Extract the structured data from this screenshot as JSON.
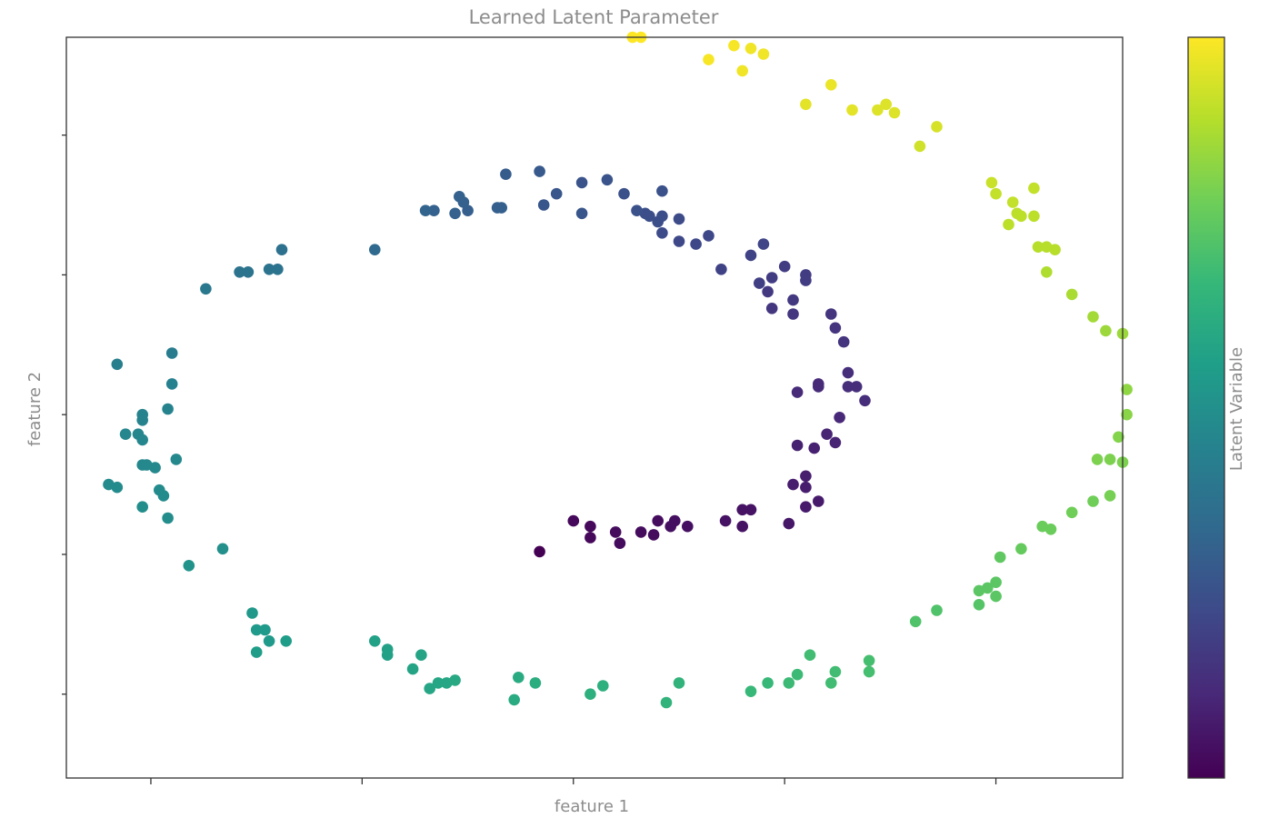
{
  "chart_data": {
    "type": "scatter",
    "title": "Learned Latent Parameter",
    "xlabel": "feature 1",
    "ylabel": "feature 2",
    "xlim": [
      -1.2,
      1.3
    ],
    "ylim": [
      -1.3,
      1.35
    ],
    "x_ticks": [
      -1.0,
      -0.5,
      0.0,
      0.5,
      1.0
    ],
    "y_ticks": [
      -1.0,
      -0.5,
      0.0,
      0.5,
      1.0,
      1.5
    ],
    "tick_labels_shown": false,
    "grid": false,
    "colorbar": {
      "label": "Latent Variable",
      "colormap": "viridis",
      "range": [
        0,
        1
      ],
      "tick_labels_shown": false
    },
    "colormap_stops": [
      "#440154",
      "#482878",
      "#3e4989",
      "#31688e",
      "#26828e",
      "#1f9e89",
      "#35b779",
      "#6ece58",
      "#b5de2b",
      "#fde725"
    ],
    "points": [
      {
        "x": -0.08,
        "y": -0.49,
        "t": 0.0
      },
      {
        "x": 0.0,
        "y": -0.38,
        "t": 0.02
      },
      {
        "x": 0.04,
        "y": -0.4,
        "t": 0.02
      },
      {
        "x": 0.04,
        "y": -0.44,
        "t": 0.02
      },
      {
        "x": 0.1,
        "y": -0.42,
        "t": 0.03
      },
      {
        "x": 0.11,
        "y": -0.46,
        "t": 0.03
      },
      {
        "x": 0.16,
        "y": -0.42,
        "t": 0.03
      },
      {
        "x": 0.19,
        "y": -0.43,
        "t": 0.03
      },
      {
        "x": 0.2,
        "y": -0.38,
        "t": 0.03
      },
      {
        "x": 0.23,
        "y": -0.4,
        "t": 0.04
      },
      {
        "x": 0.24,
        "y": -0.38,
        "t": 0.04
      },
      {
        "x": 0.27,
        "y": -0.4,
        "t": 0.04
      },
      {
        "x": 0.36,
        "y": -0.38,
        "t": 0.05
      },
      {
        "x": 0.4,
        "y": -0.4,
        "t": 0.05
      },
      {
        "x": 0.4,
        "y": -0.34,
        "t": 0.05
      },
      {
        "x": 0.42,
        "y": -0.34,
        "t": 0.05
      },
      {
        "x": 0.51,
        "y": -0.39,
        "t": 0.06
      },
      {
        "x": 0.55,
        "y": -0.33,
        "t": 0.07
      },
      {
        "x": 0.58,
        "y": -0.31,
        "t": 0.07
      },
      {
        "x": 0.52,
        "y": -0.25,
        "t": 0.08
      },
      {
        "x": 0.55,
        "y": -0.26,
        "t": 0.08
      },
      {
        "x": 0.55,
        "y": -0.22,
        "t": 0.08
      },
      {
        "x": 0.53,
        "y": -0.11,
        "t": 0.09
      },
      {
        "x": 0.57,
        "y": -0.12,
        "t": 0.09
      },
      {
        "x": 0.6,
        "y": -0.07,
        "t": 0.1
      },
      {
        "x": 0.62,
        "y": -0.1,
        "t": 0.1
      },
      {
        "x": 0.63,
        "y": -0.01,
        "t": 0.11
      },
      {
        "x": 0.53,
        "y": 0.08,
        "t": 0.12
      },
      {
        "x": 0.58,
        "y": 0.1,
        "t": 0.12
      },
      {
        "x": 0.58,
        "y": 0.11,
        "t": 0.12
      },
      {
        "x": 0.65,
        "y": 0.1,
        "t": 0.13
      },
      {
        "x": 0.67,
        "y": 0.1,
        "t": 0.13
      },
      {
        "x": 0.69,
        "y": 0.05,
        "t": 0.13
      },
      {
        "x": 0.65,
        "y": 0.15,
        "t": 0.13
      },
      {
        "x": 0.64,
        "y": 0.26,
        "t": 0.15
      },
      {
        "x": 0.62,
        "y": 0.31,
        "t": 0.15
      },
      {
        "x": 0.61,
        "y": 0.36,
        "t": 0.15
      },
      {
        "x": 0.52,
        "y": 0.36,
        "t": 0.16
      },
      {
        "x": 0.47,
        "y": 0.38,
        "t": 0.16
      },
      {
        "x": 0.46,
        "y": 0.44,
        "t": 0.17
      },
      {
        "x": 0.52,
        "y": 0.41,
        "t": 0.17
      },
      {
        "x": 0.55,
        "y": 0.5,
        "t": 0.18
      },
      {
        "x": 0.55,
        "y": 0.48,
        "t": 0.18
      },
      {
        "x": 0.5,
        "y": 0.53,
        "t": 0.18
      },
      {
        "x": 0.47,
        "y": 0.49,
        "t": 0.18
      },
      {
        "x": 0.44,
        "y": 0.47,
        "t": 0.19
      },
      {
        "x": 0.35,
        "y": 0.52,
        "t": 0.2
      },
      {
        "x": 0.42,
        "y": 0.57,
        "t": 0.2
      },
      {
        "x": 0.45,
        "y": 0.61,
        "t": 0.21
      },
      {
        "x": 0.32,
        "y": 0.64,
        "t": 0.22
      },
      {
        "x": 0.29,
        "y": 0.61,
        "t": 0.22
      },
      {
        "x": 0.25,
        "y": 0.62,
        "t": 0.22
      },
      {
        "x": 0.25,
        "y": 0.7,
        "t": 0.23
      },
      {
        "x": 0.21,
        "y": 0.65,
        "t": 0.23
      },
      {
        "x": 0.2,
        "y": 0.69,
        "t": 0.24
      },
      {
        "x": 0.18,
        "y": 0.71,
        "t": 0.24
      },
      {
        "x": 0.21,
        "y": 0.71,
        "t": 0.24
      },
      {
        "x": 0.17,
        "y": 0.72,
        "t": 0.24
      },
      {
        "x": 0.21,
        "y": 0.8,
        "t": 0.25
      },
      {
        "x": 0.15,
        "y": 0.73,
        "t": 0.25
      },
      {
        "x": 0.12,
        "y": 0.79,
        "t": 0.25
      },
      {
        "x": 0.08,
        "y": 0.84,
        "t": 0.26
      },
      {
        "x": 0.02,
        "y": 0.83,
        "t": 0.26
      },
      {
        "x": 0.02,
        "y": 0.72,
        "t": 0.27
      },
      {
        "x": -0.04,
        "y": 0.79,
        "t": 0.27
      },
      {
        "x": -0.07,
        "y": 0.75,
        "t": 0.27
      },
      {
        "x": -0.08,
        "y": 0.87,
        "t": 0.28
      },
      {
        "x": -0.16,
        "y": 0.86,
        "t": 0.29
      },
      {
        "x": -0.17,
        "y": 0.74,
        "t": 0.3
      },
      {
        "x": -0.18,
        "y": 0.74,
        "t": 0.3
      },
      {
        "x": -0.25,
        "y": 0.73,
        "t": 0.3
      },
      {
        "x": -0.27,
        "y": 0.78,
        "t": 0.31
      },
      {
        "x": -0.26,
        "y": 0.76,
        "t": 0.31
      },
      {
        "x": -0.28,
        "y": 0.72,
        "t": 0.31
      },
      {
        "x": -0.33,
        "y": 0.73,
        "t": 0.31
      },
      {
        "x": -0.35,
        "y": 0.73,
        "t": 0.32
      },
      {
        "x": -0.47,
        "y": 0.59,
        "t": 0.34
      },
      {
        "x": -0.69,
        "y": 0.59,
        "t": 0.37
      },
      {
        "x": -0.7,
        "y": 0.52,
        "t": 0.38
      },
      {
        "x": -0.72,
        "y": 0.52,
        "t": 0.38
      },
      {
        "x": -0.77,
        "y": 0.51,
        "t": 0.38
      },
      {
        "x": -0.79,
        "y": 0.51,
        "t": 0.38
      },
      {
        "x": -0.87,
        "y": 0.45,
        "t": 0.4
      },
      {
        "x": -0.95,
        "y": 0.22,
        "t": 0.42
      },
      {
        "x": -1.08,
        "y": 0.18,
        "t": 0.43
      },
      {
        "x": -0.95,
        "y": 0.11,
        "t": 0.44
      },
      {
        "x": -0.96,
        "y": 0.02,
        "t": 0.45
      },
      {
        "x": -1.02,
        "y": 0.0,
        "t": 0.45
      },
      {
        "x": -1.02,
        "y": -0.02,
        "t": 0.45
      },
      {
        "x": -1.06,
        "y": -0.07,
        "t": 0.46
      },
      {
        "x": -1.03,
        "y": -0.07,
        "t": 0.46
      },
      {
        "x": -1.02,
        "y": -0.09,
        "t": 0.46
      },
      {
        "x": -1.02,
        "y": -0.18,
        "t": 0.47
      },
      {
        "x": -1.01,
        "y": -0.18,
        "t": 0.47
      },
      {
        "x": -0.99,
        "y": -0.19,
        "t": 0.47
      },
      {
        "x": -0.94,
        "y": -0.16,
        "t": 0.47
      },
      {
        "x": -1.1,
        "y": -0.25,
        "t": 0.48
      },
      {
        "x": -1.08,
        "y": -0.26,
        "t": 0.48
      },
      {
        "x": -0.98,
        "y": -0.27,
        "t": 0.48
      },
      {
        "x": -0.97,
        "y": -0.29,
        "t": 0.48
      },
      {
        "x": -1.02,
        "y": -0.33,
        "t": 0.49
      },
      {
        "x": -0.96,
        "y": -0.37,
        "t": 0.49
      },
      {
        "x": -0.83,
        "y": -0.48,
        "t": 0.5
      },
      {
        "x": -0.91,
        "y": -0.54,
        "t": 0.51
      },
      {
        "x": -0.76,
        "y": -0.71,
        "t": 0.53
      },
      {
        "x": -0.75,
        "y": -0.77,
        "t": 0.54
      },
      {
        "x": -0.73,
        "y": -0.77,
        "t": 0.54
      },
      {
        "x": -0.72,
        "y": -0.81,
        "t": 0.54
      },
      {
        "x": -0.75,
        "y": -0.85,
        "t": 0.55
      },
      {
        "x": -0.68,
        "y": -0.81,
        "t": 0.55
      },
      {
        "x": -0.47,
        "y": -0.81,
        "t": 0.57
      },
      {
        "x": -0.44,
        "y": -0.84,
        "t": 0.57
      },
      {
        "x": -0.44,
        "y": -0.86,
        "t": 0.57
      },
      {
        "x": -0.36,
        "y": -0.86,
        "t": 0.58
      },
      {
        "x": -0.38,
        "y": -0.91,
        "t": 0.58
      },
      {
        "x": -0.34,
        "y": -0.98,
        "t": 0.59
      },
      {
        "x": -0.32,
        "y": -0.96,
        "t": 0.59
      },
      {
        "x": -0.3,
        "y": -0.96,
        "t": 0.59
      },
      {
        "x": -0.28,
        "y": -0.95,
        "t": 0.6
      },
      {
        "x": -0.13,
        "y": -0.94,
        "t": 0.61
      },
      {
        "x": -0.14,
        "y": -1.02,
        "t": 0.61
      },
      {
        "x": -0.09,
        "y": -0.96,
        "t": 0.62
      },
      {
        "x": 0.04,
        "y": -1.0,
        "t": 0.63
      },
      {
        "x": 0.07,
        "y": -0.97,
        "t": 0.63
      },
      {
        "x": 0.22,
        "y": -1.03,
        "t": 0.65
      },
      {
        "x": 0.25,
        "y": -0.96,
        "t": 0.65
      },
      {
        "x": 0.42,
        "y": -0.99,
        "t": 0.67
      },
      {
        "x": 0.46,
        "y": -0.96,
        "t": 0.67
      },
      {
        "x": 0.51,
        "y": -0.96,
        "t": 0.68
      },
      {
        "x": 0.53,
        "y": -0.93,
        "t": 0.68
      },
      {
        "x": 0.56,
        "y": -0.86,
        "t": 0.69
      },
      {
        "x": 0.61,
        "y": -0.96,
        "t": 0.69
      },
      {
        "x": 0.62,
        "y": -0.92,
        "t": 0.69
      },
      {
        "x": 0.7,
        "y": -0.92,
        "t": 0.7
      },
      {
        "x": 0.7,
        "y": -0.88,
        "t": 0.7
      },
      {
        "x": 0.81,
        "y": -0.74,
        "t": 0.72
      },
      {
        "x": 0.86,
        "y": -0.7,
        "t": 0.72
      },
      {
        "x": 0.96,
        "y": -0.68,
        "t": 0.73
      },
      {
        "x": 0.98,
        "y": -0.62,
        "t": 0.74
      },
      {
        "x": 0.96,
        "y": -0.63,
        "t": 0.74
      },
      {
        "x": 1.0,
        "y": -0.6,
        "t": 0.74
      },
      {
        "x": 1.0,
        "y": -0.65,
        "t": 0.74
      },
      {
        "x": 1.01,
        "y": -0.51,
        "t": 0.75
      },
      {
        "x": 1.06,
        "y": -0.48,
        "t": 0.76
      },
      {
        "x": 1.11,
        "y": -0.4,
        "t": 0.77
      },
      {
        "x": 1.13,
        "y": -0.41,
        "t": 0.77
      },
      {
        "x": 1.18,
        "y": -0.35,
        "t": 0.78
      },
      {
        "x": 1.23,
        "y": -0.31,
        "t": 0.78
      },
      {
        "x": 1.27,
        "y": -0.29,
        "t": 0.79
      },
      {
        "x": 1.24,
        "y": -0.16,
        "t": 0.8
      },
      {
        "x": 1.27,
        "y": -0.16,
        "t": 0.8
      },
      {
        "x": 1.3,
        "y": -0.17,
        "t": 0.8
      },
      {
        "x": 1.29,
        "y": -0.08,
        "t": 0.81
      },
      {
        "x": 1.31,
        "y": 0.0,
        "t": 0.82
      },
      {
        "x": 1.31,
        "y": 0.09,
        "t": 0.83
      },
      {
        "x": 1.3,
        "y": 0.29,
        "t": 0.85
      },
      {
        "x": 1.26,
        "y": 0.3,
        "t": 0.85
      },
      {
        "x": 1.23,
        "y": 0.35,
        "t": 0.86
      },
      {
        "x": 1.18,
        "y": 0.43,
        "t": 0.87
      },
      {
        "x": 1.12,
        "y": 0.51,
        "t": 0.88
      },
      {
        "x": 1.14,
        "y": 0.59,
        "t": 0.89
      },
      {
        "x": 1.12,
        "y": 0.6,
        "t": 0.89
      },
      {
        "x": 1.1,
        "y": 0.6,
        "t": 0.89
      },
      {
        "x": 1.06,
        "y": 0.71,
        "t": 0.9
      },
      {
        "x": 1.09,
        "y": 0.71,
        "t": 0.9
      },
      {
        "x": 1.03,
        "y": 0.68,
        "t": 0.9
      },
      {
        "x": 1.05,
        "y": 0.72,
        "t": 0.9
      },
      {
        "x": 1.0,
        "y": 0.79,
        "t": 0.91
      },
      {
        "x": 1.04,
        "y": 0.76,
        "t": 0.91
      },
      {
        "x": 1.09,
        "y": 0.81,
        "t": 0.91
      },
      {
        "x": 0.99,
        "y": 0.83,
        "t": 0.92
      },
      {
        "x": 0.82,
        "y": 0.96,
        "t": 0.93
      },
      {
        "x": 0.86,
        "y": 1.03,
        "t": 0.94
      },
      {
        "x": 0.76,
        "y": 1.08,
        "t": 0.95
      },
      {
        "x": 0.74,
        "y": 1.11,
        "t": 0.95
      },
      {
        "x": 0.72,
        "y": 1.09,
        "t": 0.95
      },
      {
        "x": 0.66,
        "y": 1.09,
        "t": 0.96
      },
      {
        "x": 0.55,
        "y": 1.11,
        "t": 0.96
      },
      {
        "x": 0.61,
        "y": 1.18,
        "t": 0.97
      },
      {
        "x": 0.4,
        "y": 1.23,
        "t": 0.98
      },
      {
        "x": 0.45,
        "y": 1.29,
        "t": 0.98
      },
      {
        "x": 0.42,
        "y": 1.31,
        "t": 0.98
      },
      {
        "x": 0.38,
        "y": 1.32,
        "t": 0.99
      },
      {
        "x": 0.32,
        "y": 1.27,
        "t": 0.99
      },
      {
        "x": 0.14,
        "y": 1.35,
        "t": 1.0
      },
      {
        "x": 0.16,
        "y": 1.35,
        "t": 1.0
      }
    ]
  }
}
